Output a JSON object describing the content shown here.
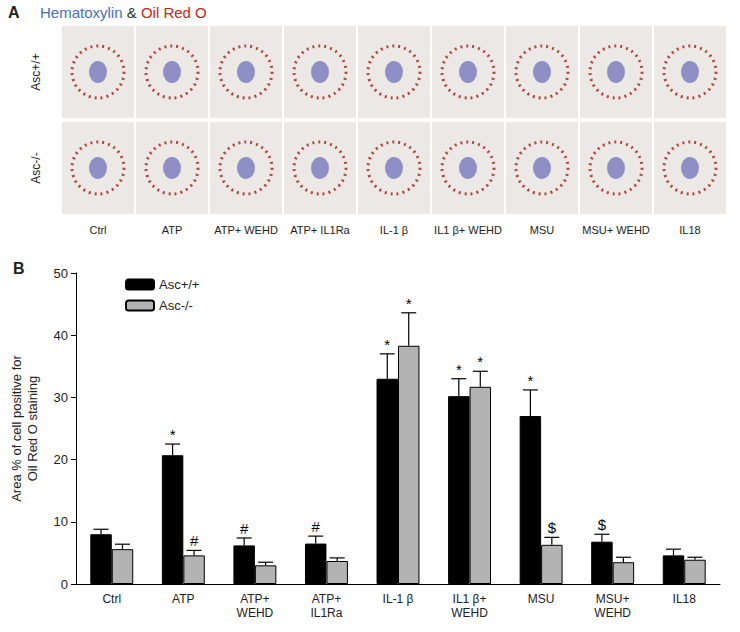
{
  "panel_a": {
    "label": "A",
    "title_parts": [
      {
        "text": "Hematoxylin",
        "color": "#4a6fc0"
      },
      {
        "text": " & ",
        "color": "#333333"
      },
      {
        "text": "Oil Red O",
        "color": "#d42020"
      }
    ],
    "rows": [
      "Asc+/+",
      "Asc-/-"
    ],
    "columns": [
      "Ctrl",
      "ATP",
      "ATP+ WEHD",
      "ATP+ IL1Ra",
      "IL-1 β",
      "IL1 β+ WEHD",
      "MSU",
      "MSU+ WEHD",
      "IL18"
    ]
  },
  "chart_data": {
    "type": "bar",
    "panel_label": "B",
    "y_label": "Area % of cell positive for\nOil Red O staining",
    "categories": [
      "Ctrl",
      "ATP",
      "ATP+\nWEHD",
      "ATP+\nIL1Ra",
      "IL-1 β",
      "IL1 β+\nWEHD",
      "MSU",
      "MSU+\nWEHD",
      "IL18"
    ],
    "series": [
      {
        "name": "Asc+/+",
        "color": "#000000",
        "values": [
          8,
          20.7,
          6.2,
          6.5,
          33,
          30.2,
          27,
          6.8,
          4.6
        ],
        "error": [
          0.8,
          1.8,
          1.2,
          1.2,
          4,
          2.8,
          4.2,
          1.2,
          1.0
        ],
        "annotations": [
          null,
          "*",
          "#",
          "#",
          "*",
          "*",
          "*",
          "$",
          null
        ]
      },
      {
        "name": "Asc-/-",
        "color": "#b3b3b3",
        "values": [
          5.6,
          4.6,
          3,
          3.7,
          38.3,
          31.7,
          6.3,
          3.5,
          3.9
        ],
        "error": [
          0.8,
          0.8,
          0.5,
          0.5,
          5.3,
          2.5,
          1.2,
          0.8,
          0.4
        ],
        "annotations": [
          null,
          "#",
          null,
          null,
          "*",
          "*",
          "$",
          null,
          null
        ]
      }
    ],
    "ylim": [
      0,
      50
    ],
    "yticks": [
      0,
      10,
      20,
      30,
      40,
      50
    ],
    "grid": false,
    "legend": "top-left"
  }
}
